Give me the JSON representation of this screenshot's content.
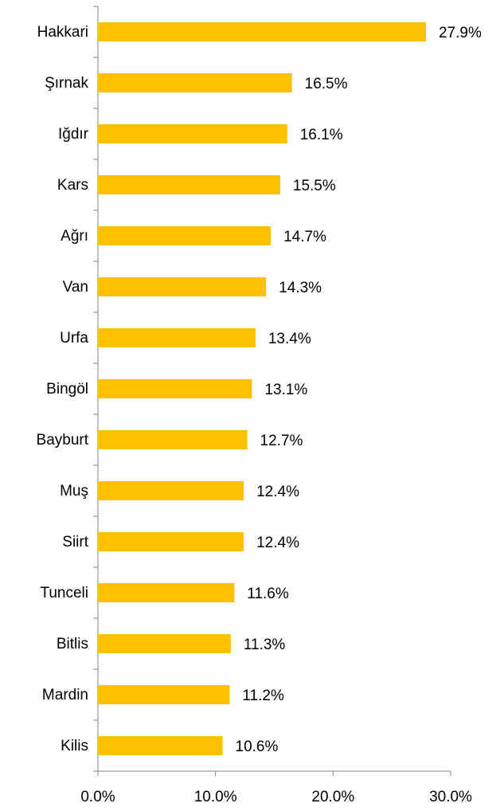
{
  "chart_data": {
    "type": "barh",
    "categories": [
      "Hakkari",
      "Şırnak",
      "Iğdır",
      "Kars",
      "Ağrı",
      "Van",
      "Urfa",
      "Bingöl",
      "Bayburt",
      "Muş",
      "Siirt",
      "Tunceli",
      "Bitlis",
      "Mardin",
      "Kilis"
    ],
    "values": [
      27.9,
      16.5,
      16.1,
      15.5,
      14.7,
      14.3,
      13.4,
      13.1,
      12.7,
      12.4,
      12.4,
      11.6,
      11.3,
      11.2,
      10.6
    ],
    "value_labels": [
      "27.9%",
      "16.5%",
      "16.1%",
      "15.5%",
      "14.7%",
      "14.3%",
      "13.4%",
      "13.1%",
      "12.7%",
      "12.4%",
      "12.4%",
      "11.6%",
      "11.3%",
      "11.2%",
      "10.6%"
    ],
    "color": "#ffc000",
    "xlim": [
      0,
      30
    ],
    "xticks": [
      {
        "value": 0,
        "label": "0.0%"
      },
      {
        "value": 10,
        "label": "10.0%"
      },
      {
        "value": 20,
        "label": "20.0%"
      },
      {
        "value": 30,
        "label": "30.0%"
      }
    ],
    "grid": false
  }
}
